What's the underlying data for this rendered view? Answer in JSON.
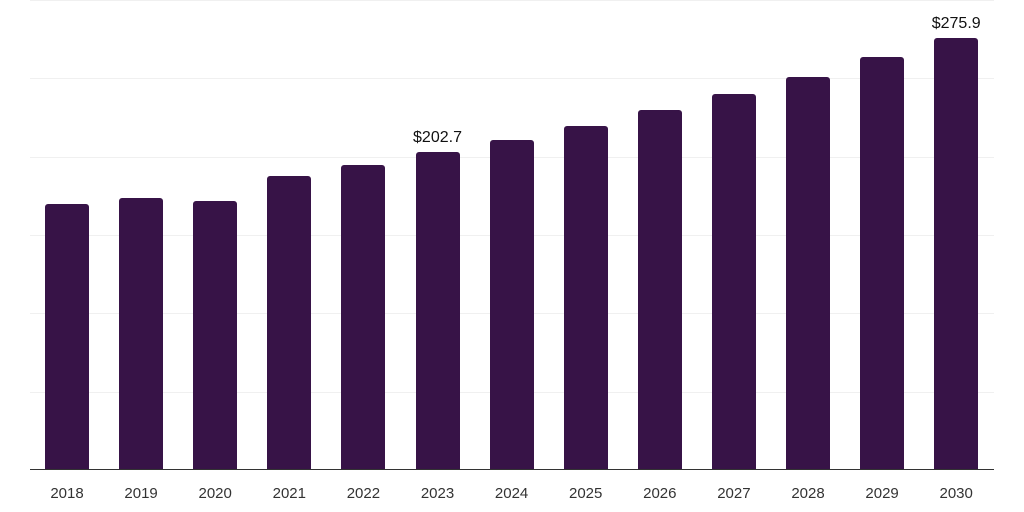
{
  "chart_data": {
    "type": "bar",
    "title": "",
    "xlabel": "",
    "ylabel": "",
    "categories": [
      "2018",
      "2019",
      "2020",
      "2021",
      "2022",
      "2023",
      "2024",
      "2025",
      "2026",
      "2027",
      "2028",
      "2029",
      "2030"
    ],
    "values": [
      170.0,
      173.8,
      171.9,
      187.9,
      194.9,
      202.7,
      210.9,
      219.8,
      230.0,
      240.3,
      251.1,
      263.3,
      275.9
    ],
    "data_labels": [
      {
        "category": "2023",
        "text": "$202.7"
      },
      {
        "category": "2030",
        "text": "$275.9"
      }
    ],
    "ylim": [
      0,
      300
    ],
    "yticks": [
      0,
      50,
      100,
      150,
      200,
      250,
      300
    ],
    "ytick_labels_visible": false,
    "grid": true,
    "legend": null,
    "bar_color": "#371347"
  }
}
